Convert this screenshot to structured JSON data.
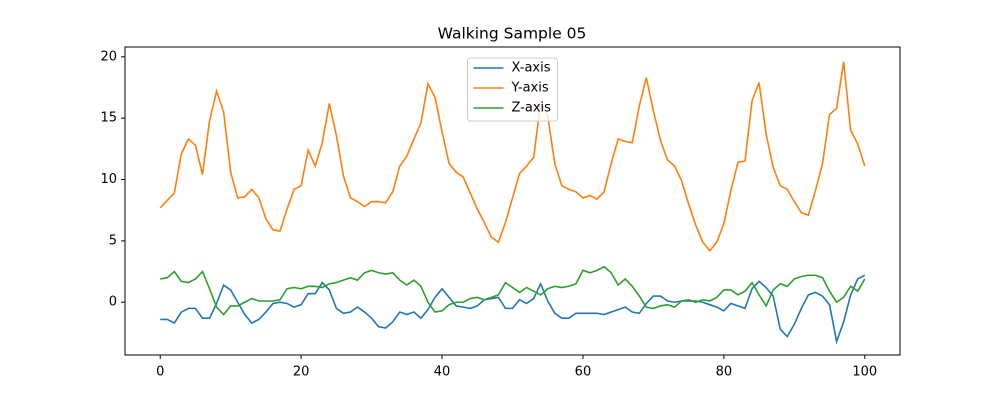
{
  "chart_data": {
    "type": "line",
    "title": "Walking Sample 05",
    "x": [
      0,
      1,
      2,
      3,
      4,
      5,
      6,
      7,
      8,
      9,
      10,
      11,
      12,
      13,
      14,
      15,
      16,
      17,
      18,
      19,
      20,
      21,
      22,
      23,
      24,
      25,
      26,
      27,
      28,
      29,
      30,
      31,
      32,
      33,
      34,
      35,
      36,
      37,
      38,
      39,
      40,
      41,
      42,
      43,
      44,
      45,
      46,
      47,
      48,
      49,
      50,
      51,
      52,
      53,
      54,
      55,
      56,
      57,
      58,
      59,
      60,
      61,
      62,
      63,
      64,
      65,
      66,
      67,
      68,
      69,
      70,
      71,
      72,
      73,
      74,
      75,
      76,
      77,
      78,
      79,
      80,
      81,
      82,
      83,
      84,
      85,
      86,
      87,
      88,
      89,
      90,
      91,
      92,
      93,
      94,
      95,
      96,
      97,
      98,
      99,
      100
    ],
    "series": [
      {
        "name": "X-axis",
        "color": "#1f77b4",
        "values": [
          -1.4,
          -1.4,
          -1.7,
          -0.8,
          -0.5,
          -0.5,
          -1.3,
          -1.3,
          -0.1,
          1.4,
          1.0,
          0.0,
          -1.0,
          -1.7,
          -1.4,
          -0.8,
          -0.1,
          0.0,
          -0.1,
          -0.4,
          -0.2,
          0.7,
          0.7,
          1.6,
          1.0,
          -0.5,
          -0.9,
          -0.8,
          -0.4,
          -0.8,
          -1.3,
          -2.0,
          -2.1,
          -1.6,
          -0.8,
          -1.0,
          -0.8,
          -1.3,
          -0.6,
          0.4,
          1.1,
          0.4,
          -0.3,
          -0.4,
          -0.5,
          -0.3,
          0.2,
          0.3,
          0.4,
          -0.5,
          -0.5,
          0.2,
          -0.1,
          0.3,
          1.5,
          0.1,
          -0.9,
          -1.3,
          -1.3,
          -0.9,
          -0.9,
          -0.9,
          -0.9,
          -1.0,
          -0.8,
          -0.6,
          -0.4,
          -0.8,
          -0.9,
          -0.1,
          0.5,
          0.5,
          0.1,
          0.0,
          0.1,
          0.1,
          0.1,
          0.0,
          -0.2,
          -0.4,
          -0.7,
          -0.1,
          -0.3,
          -0.5,
          1.1,
          1.7,
          1.2,
          0.5,
          -2.2,
          -2.8,
          -1.8,
          -0.5,
          0.6,
          0.8,
          0.5,
          -0.2,
          -3.2,
          -1.6,
          0.6,
          1.9,
          2.2
        ]
      },
      {
        "name": "Y-axis",
        "color": "#ff7f0e",
        "values": [
          7.7,
          8.3,
          8.9,
          12.1,
          13.3,
          12.8,
          10.4,
          14.8,
          17.2,
          15.5,
          10.6,
          8.5,
          8.6,
          9.2,
          8.5,
          6.8,
          5.9,
          5.8,
          7.6,
          9.2,
          9.5,
          12.4,
          11.1,
          13.0,
          16.2,
          13.6,
          10.3,
          8.5,
          8.2,
          7.8,
          8.2,
          8.2,
          8.1,
          9.0,
          11.1,
          11.9,
          13.3,
          14.6,
          17.8,
          16.7,
          13.9,
          11.3,
          10.6,
          10.2,
          8.9,
          7.6,
          6.5,
          5.3,
          4.9,
          6.5,
          8.5,
          10.5,
          11.1,
          11.8,
          16.3,
          15.2,
          11.3,
          9.5,
          9.2,
          9.0,
          8.5,
          8.7,
          8.4,
          9.0,
          11.3,
          13.3,
          13.1,
          13.0,
          16.0,
          18.3,
          15.6,
          13.2,
          11.6,
          11.1,
          9.9,
          8.0,
          6.3,
          4.9,
          4.2,
          4.9,
          6.4,
          9.1,
          11.4,
          11.5,
          16.4,
          17.9,
          13.7,
          11.0,
          9.5,
          9.2,
          8.2,
          7.3,
          7.1,
          9.1,
          11.3,
          15.3,
          15.8,
          19.6,
          14.0,
          12.9,
          11.1
        ]
      },
      {
        "name": "Z-axis",
        "color": "#2ca02c",
        "values": [
          1.9,
          2.0,
          2.5,
          1.7,
          1.6,
          1.9,
          2.5,
          1.1,
          -0.4,
          -1.0,
          -0.3,
          -0.3,
          0.0,
          0.3,
          0.1,
          0.1,
          0.1,
          0.2,
          1.1,
          1.2,
          1.1,
          1.3,
          1.3,
          1.2,
          1.5,
          1.6,
          1.8,
          2.0,
          1.8,
          2.4,
          2.6,
          2.4,
          2.3,
          2.4,
          1.8,
          1.4,
          1.8,
          1.3,
          0.0,
          -0.8,
          -0.7,
          -0.2,
          0.0,
          0.0,
          0.3,
          0.4,
          0.2,
          0.4,
          0.6,
          1.6,
          1.2,
          0.8,
          1.2,
          0.9,
          0.6,
          1.1,
          1.3,
          1.2,
          1.3,
          1.5,
          2.6,
          2.4,
          2.6,
          2.9,
          2.4,
          1.4,
          1.9,
          1.3,
          0.5,
          -0.4,
          -0.5,
          -0.3,
          -0.2,
          -0.4,
          0.1,
          0.2,
          0.0,
          0.2,
          0.1,
          0.4,
          1.0,
          1.0,
          0.6,
          0.9,
          1.6,
          0.6,
          -0.3,
          1.0,
          1.5,
          1.3,
          1.9,
          2.1,
          2.2,
          2.2,
          2.0,
          0.9,
          0.0,
          0.4,
          1.3,
          0.9,
          1.9
        ]
      }
    ],
    "xlim": [
      -5,
      105
    ],
    "ylim": [
      -4.3,
      20.8
    ],
    "xticks": [
      0,
      20,
      40,
      60,
      80,
      100
    ],
    "yticks": [
      0,
      5,
      10,
      15,
      20
    ],
    "grid": false,
    "legend": "upper center"
  }
}
